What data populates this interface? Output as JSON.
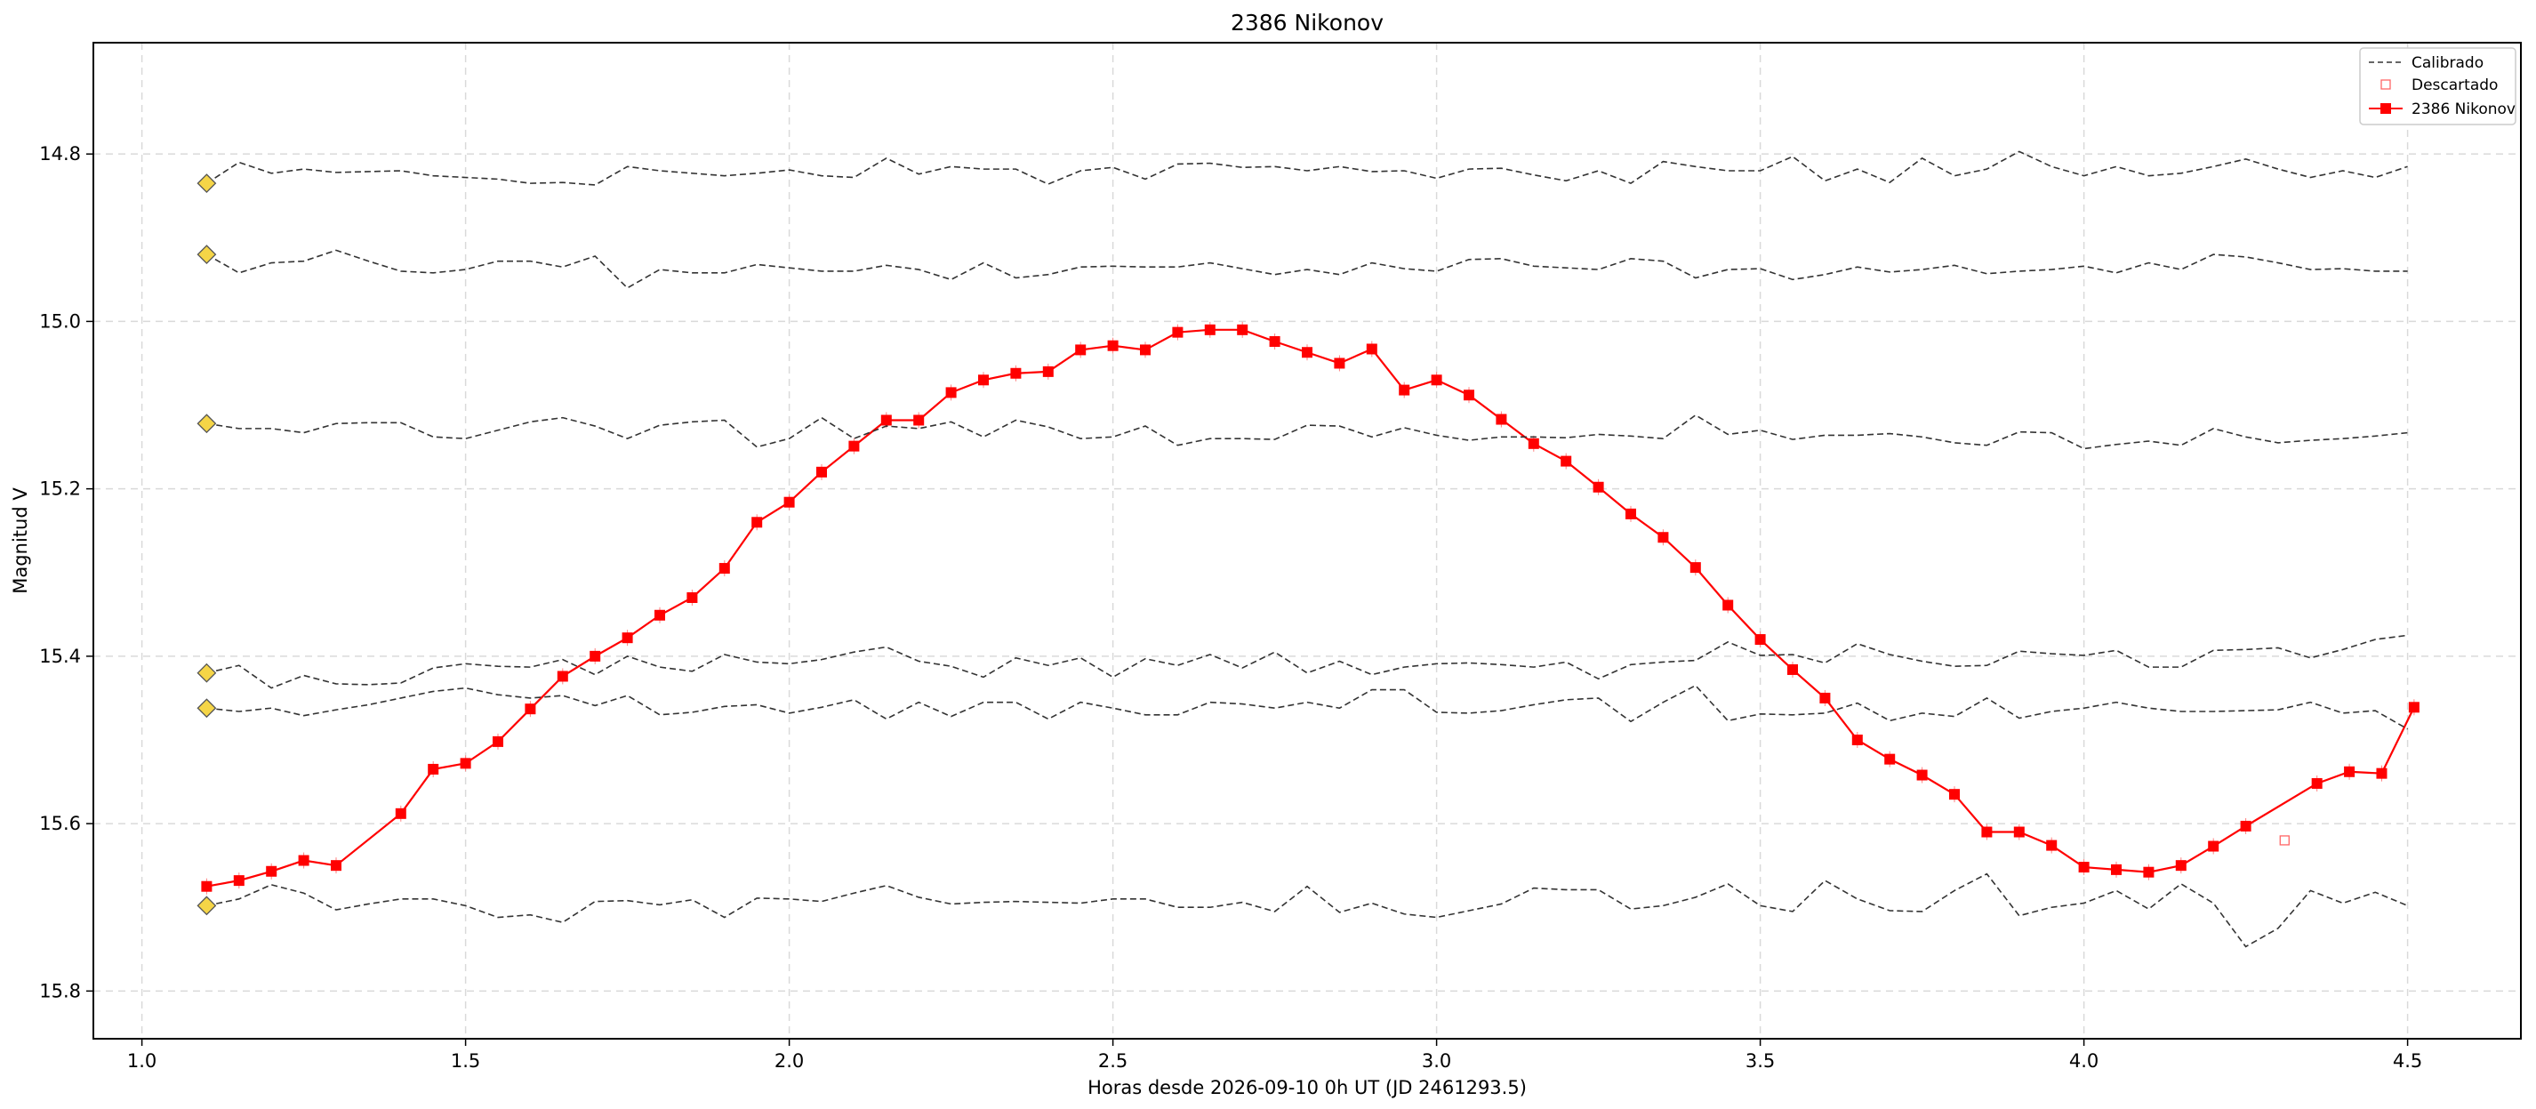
{
  "chart_data": {
    "type": "line",
    "title": "2386 Nikonov",
    "xlabel": "Horas desde 2026-09-10 0h UT (JD 2461293.5)",
    "ylabel": "Magnitud V",
    "xlim": [
      0.925,
      4.675
    ],
    "ylim": [
      15.857,
      14.667
    ],
    "y_inverted": true,
    "grid": true,
    "legend_position": "top-right",
    "xticks": [
      1.0,
      1.5,
      2.0,
      2.5,
      3.0,
      3.5,
      4.0,
      4.5
    ],
    "yticks": [
      14.8,
      15.0,
      15.2,
      15.4,
      15.6,
      15.8
    ],
    "x": [
      1.1,
      1.15,
      1.2,
      1.25,
      1.3,
      1.35,
      1.4,
      1.45,
      1.5,
      1.55,
      1.6,
      1.65,
      1.7,
      1.75,
      1.8,
      1.85,
      1.9,
      1.95,
      2.0,
      2.05,
      2.1,
      2.15,
      2.2,
      2.25,
      2.3,
      2.35,
      2.4,
      2.45,
      2.5,
      2.55,
      2.6,
      2.65,
      2.7,
      2.75,
      2.8,
      2.85,
      2.9,
      2.95,
      3.0,
      3.05,
      3.1,
      3.15,
      3.2,
      3.25,
      3.3,
      3.35,
      3.4,
      3.45,
      3.5,
      3.55,
      3.6,
      3.65,
      3.7,
      3.75,
      3.8,
      3.85,
      3.9,
      3.95,
      4.0,
      4.05,
      4.1,
      4.15,
      4.2,
      4.25,
      4.3,
      4.35,
      4.4,
      4.45,
      4.5
    ],
    "legend": [
      "Calibrado",
      "Descartado",
      "2386 Nikonov"
    ],
    "series": [
      {
        "name": "2386 Nikonov",
        "role": "target",
        "color": "#ff0000",
        "x": [
          1.1,
          1.15,
          1.2,
          1.25,
          1.3,
          1.4,
          1.45,
          1.5,
          1.55,
          1.6,
          1.65,
          1.7,
          1.75,
          1.8,
          1.85,
          1.9,
          1.95,
          2.0,
          2.05,
          2.1,
          2.15,
          2.2,
          2.25,
          2.3,
          2.35,
          2.4,
          2.45,
          2.5,
          2.55,
          2.6,
          2.65,
          2.7,
          2.75,
          2.8,
          2.85,
          2.9,
          2.95,
          3.0,
          3.05,
          3.1,
          3.15,
          3.2,
          3.25,
          3.3,
          3.35,
          3.4,
          3.45,
          3.5,
          3.55,
          3.6,
          3.65,
          3.7,
          3.75,
          3.8,
          3.85,
          3.9,
          3.95,
          4.0,
          4.05,
          4.1,
          4.15,
          4.2,
          4.25,
          4.36,
          4.41,
          4.46,
          4.51
        ],
        "values": [
          15.675,
          15.668,
          15.657,
          15.644,
          15.65,
          15.588,
          15.535,
          15.528,
          15.502,
          15.463,
          15.424,
          15.4,
          15.378,
          15.351,
          15.33,
          15.295,
          15.24,
          15.216,
          15.18,
          15.149,
          15.118,
          15.118,
          15.085,
          15.07,
          15.062,
          15.06,
          15.034,
          15.029,
          15.034,
          15.013,
          15.01,
          15.01,
          15.024,
          15.037,
          15.05,
          15.033,
          15.082,
          15.07,
          15.088,
          15.117,
          15.146,
          15.167,
          15.198,
          15.23,
          15.258,
          15.294,
          15.339,
          15.38,
          15.416,
          15.45,
          15.5,
          15.523,
          15.542,
          15.565,
          15.61,
          15.61,
          15.626,
          15.652,
          15.655,
          15.658,
          15.65,
          15.627,
          15.603,
          15.552,
          15.538,
          15.54,
          15.461
        ]
      },
      {
        "name": "Descartado",
        "role": "discarded",
        "color": "#ff6666",
        "x": [
          4.31
        ],
        "values": [
          15.62
        ]
      },
      {
        "name": "Calibrado",
        "role": "comparison",
        "color": "#333333",
        "values": [
          14.835,
          14.81,
          14.823,
          14.818,
          14.822,
          14.821,
          14.82,
          14.826,
          14.828,
          14.83,
          14.835,
          14.834,
          14.837,
          14.815,
          14.82,
          14.823,
          14.826,
          14.823,
          14.819,
          14.826,
          14.828,
          14.805,
          14.824,
          14.815,
          14.818,
          14.818,
          14.836,
          14.82,
          14.816,
          14.83,
          14.812,
          14.811,
          14.816,
          14.815,
          14.82,
          14.815,
          14.821,
          14.82,
          14.829,
          14.818,
          14.817,
          14.825,
          14.832,
          14.82,
          14.835,
          14.809,
          14.815,
          14.82,
          14.82,
          14.803,
          14.832,
          14.818,
          14.834,
          14.805,
          14.826,
          14.818,
          14.797,
          14.815,
          14.826,
          14.815,
          14.826,
          14.823,
          14.815,
          14.806,
          14.818,
          14.828,
          14.82,
          14.828,
          14.815
        ]
      },
      {
        "name": "Calibrado",
        "role": "comparison",
        "color": "#333333",
        "values": [
          14.92,
          14.942,
          14.93,
          14.928,
          14.915,
          14.928,
          14.94,
          14.942,
          14.938,
          14.928,
          14.928,
          14.935,
          14.922,
          14.96,
          14.938,
          14.942,
          14.942,
          14.932,
          14.936,
          14.94,
          14.94,
          14.933,
          14.938,
          14.95,
          14.93,
          14.948,
          14.944,
          14.935,
          14.934,
          14.935,
          14.935,
          14.93,
          14.937,
          14.944,
          14.938,
          14.944,
          14.93,
          14.937,
          14.94,
          14.926,
          14.925,
          14.934,
          14.936,
          14.938,
          14.925,
          14.928,
          14.948,
          14.938,
          14.937,
          14.95,
          14.944,
          14.935,
          14.941,
          14.938,
          14.933,
          14.943,
          14.94,
          14.938,
          14.934,
          14.942,
          14.93,
          14.938,
          14.92,
          14.923,
          14.93,
          14.938,
          14.937,
          14.94,
          14.94
        ]
      },
      {
        "name": "Calibrado",
        "role": "comparison",
        "color": "#333333",
        "values": [
          15.122,
          15.128,
          15.128,
          15.133,
          15.122,
          15.121,
          15.121,
          15.138,
          15.14,
          15.13,
          15.12,
          15.115,
          15.125,
          15.14,
          15.124,
          15.12,
          15.118,
          15.15,
          15.14,
          15.115,
          15.14,
          15.125,
          15.128,
          15.12,
          15.138,
          15.118,
          15.126,
          15.14,
          15.138,
          15.125,
          15.148,
          15.14,
          15.14,
          15.141,
          15.124,
          15.125,
          15.138,
          15.127,
          15.136,
          15.142,
          15.138,
          15.138,
          15.139,
          15.135,
          15.137,
          15.14,
          15.112,
          15.135,
          15.13,
          15.141,
          15.136,
          15.136,
          15.134,
          15.138,
          15.145,
          15.148,
          15.132,
          15.133,
          15.152,
          15.147,
          15.143,
          15.148,
          15.128,
          15.138,
          15.145,
          15.142,
          15.14,
          15.137,
          15.133
        ]
      },
      {
        "name": "Calibrado",
        "role": "comparison",
        "color": "#333333",
        "values": [
          15.42,
          15.411,
          15.438,
          15.423,
          15.433,
          15.434,
          15.432,
          15.414,
          15.409,
          15.412,
          15.413,
          15.404,
          15.422,
          15.4,
          15.413,
          15.418,
          15.398,
          15.407,
          15.409,
          15.404,
          15.395,
          15.389,
          15.406,
          15.412,
          15.425,
          15.402,
          15.411,
          15.402,
          15.425,
          15.403,
          15.411,
          15.398,
          15.414,
          15.395,
          15.42,
          15.406,
          15.422,
          15.413,
          15.409,
          15.408,
          15.41,
          15.413,
          15.407,
          15.427,
          15.41,
          15.407,
          15.405,
          15.383,
          15.399,
          15.398,
          15.408,
          15.385,
          15.398,
          15.406,
          15.412,
          15.411,
          15.394,
          15.397,
          15.399,
          15.393,
          15.413,
          15.413,
          15.393,
          15.392,
          15.39,
          15.402,
          15.392,
          15.38,
          15.375
        ]
      },
      {
        "name": "Calibrado",
        "role": "comparison",
        "color": "#333333",
        "values": [
          15.462,
          15.466,
          15.462,
          15.471,
          15.464,
          15.458,
          15.45,
          15.442,
          15.438,
          15.446,
          15.45,
          15.447,
          15.459,
          15.447,
          15.47,
          15.467,
          15.46,
          15.458,
          15.468,
          15.461,
          15.452,
          15.475,
          15.455,
          15.472,
          15.455,
          15.455,
          15.475,
          15.455,
          15.462,
          15.47,
          15.47,
          15.455,
          15.457,
          15.462,
          15.455,
          15.462,
          15.44,
          15.44,
          15.467,
          15.468,
          15.465,
          15.458,
          15.452,
          15.45,
          15.478,
          15.455,
          15.435,
          15.477,
          15.469,
          15.47,
          15.468,
          15.456,
          15.477,
          15.468,
          15.472,
          15.45,
          15.474,
          15.466,
          15.462,
          15.455,
          15.462,
          15.466,
          15.466,
          15.465,
          15.464,
          15.455,
          15.468,
          15.465,
          15.487
        ]
      },
      {
        "name": "Calibrado",
        "role": "comparison",
        "color": "#333333",
        "values": [
          15.698,
          15.69,
          15.673,
          15.683,
          15.703,
          15.696,
          15.69,
          15.69,
          15.698,
          15.712,
          15.709,
          15.718,
          15.693,
          15.692,
          15.697,
          15.691,
          15.712,
          15.689,
          15.69,
          15.693,
          15.683,
          15.674,
          15.688,
          15.696,
          15.694,
          15.693,
          15.694,
          15.695,
          15.69,
          15.69,
          15.7,
          15.7,
          15.694,
          15.705,
          15.675,
          15.706,
          15.695,
          15.708,
          15.712,
          15.704,
          15.696,
          15.677,
          15.679,
          15.679,
          15.702,
          15.698,
          15.688,
          15.672,
          15.698,
          15.705,
          15.668,
          15.69,
          15.704,
          15.705,
          15.68,
          15.66,
          15.71,
          15.7,
          15.695,
          15.68,
          15.702,
          15.672,
          15.695,
          15.747,
          15.725,
          15.68,
          15.695,
          15.682,
          15.698
        ]
      }
    ]
  }
}
